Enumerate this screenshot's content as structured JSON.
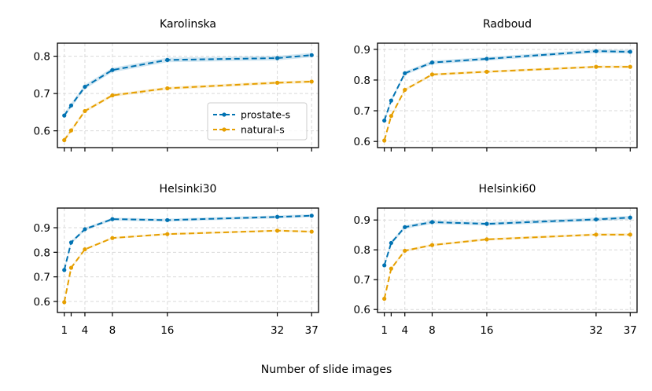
{
  "figure": {
    "xlabel": "Number of slide images",
    "legend": {
      "placement": "lower-right of Karolinska panel",
      "entries": [
        {
          "name": "prostate-s",
          "color": "#0072B2"
        },
        {
          "name": "natural-s",
          "color": "#E69F00"
        }
      ]
    }
  },
  "chart_data": [
    {
      "type": "line",
      "title": "Karolinska",
      "x": [
        1,
        2,
        4,
        8,
        16,
        32,
        37
      ],
      "xticks": [
        1,
        4,
        8,
        16,
        32,
        37
      ],
      "xlim": [
        0,
        38
      ],
      "ylim": [
        0.555,
        0.835
      ],
      "yticks": [
        0.6,
        0.7,
        0.8
      ],
      "ytick_labels": [
        "0.6",
        "0.7",
        "0.8"
      ],
      "grid": true,
      "series": [
        {
          "name": "prostate-s",
          "values": [
            0.641,
            0.668,
            0.718,
            0.763,
            0.79,
            0.795,
            0.803
          ],
          "band": 0.006
        },
        {
          "name": "natural-s",
          "values": [
            0.575,
            0.601,
            0.653,
            0.695,
            0.714,
            0.729,
            0.732
          ],
          "band": 0.004
        }
      ]
    },
    {
      "type": "line",
      "title": "Radboud",
      "x": [
        1,
        2,
        4,
        8,
        16,
        32,
        37
      ],
      "xticks": [
        1,
        4,
        8,
        16,
        32,
        37
      ],
      "xlim": [
        0,
        38
      ],
      "ylim": [
        0.58,
        0.92
      ],
      "yticks": [
        0.6,
        0.7,
        0.8,
        0.9
      ],
      "ytick_labels": [
        "0.6",
        "0.7",
        "0.8",
        "0.9"
      ],
      "grid": true,
      "series": [
        {
          "name": "prostate-s",
          "values": [
            0.668,
            0.733,
            0.822,
            0.857,
            0.869,
            0.894,
            0.892
          ],
          "band": 0.006
        },
        {
          "name": "natural-s",
          "values": [
            0.603,
            0.683,
            0.768,
            0.818,
            0.827,
            0.843,
            0.843
          ],
          "band": 0.004
        }
      ]
    },
    {
      "type": "line",
      "title": "Helsinki30",
      "x": [
        1,
        2,
        4,
        8,
        16,
        32,
        37
      ],
      "xticks": [
        1,
        4,
        8,
        16,
        32,
        37
      ],
      "xlim": [
        0,
        38
      ],
      "ylim": [
        0.555,
        0.98
      ],
      "yticks": [
        0.6,
        0.7,
        0.8,
        0.9
      ],
      "ytick_labels": [
        "0.6",
        "0.7",
        "0.8",
        "0.9"
      ],
      "grid": true,
      "series": [
        {
          "name": "prostate-s",
          "values": [
            0.728,
            0.84,
            0.894,
            0.935,
            0.931,
            0.944,
            0.949
          ],
          "band": 0.006
        },
        {
          "name": "natural-s",
          "values": [
            0.597,
            0.737,
            0.812,
            0.858,
            0.874,
            0.888,
            0.884
          ],
          "band": 0.004
        }
      ]
    },
    {
      "type": "line",
      "title": "Helsinki60",
      "x": [
        1,
        2,
        4,
        8,
        16,
        32,
        37
      ],
      "xticks": [
        1,
        4,
        8,
        16,
        32,
        37
      ],
      "xlim": [
        0,
        38
      ],
      "ylim": [
        0.59,
        0.94
      ],
      "yticks": [
        0.6,
        0.7,
        0.8,
        0.9
      ],
      "ytick_labels": [
        "0.6",
        "0.7",
        "0.8",
        "0.9"
      ],
      "grid": true,
      "series": [
        {
          "name": "prostate-s",
          "values": [
            0.748,
            0.823,
            0.876,
            0.893,
            0.887,
            0.902,
            0.908
          ],
          "band": 0.006
        },
        {
          "name": "natural-s",
          "values": [
            0.636,
            0.737,
            0.797,
            0.816,
            0.835,
            0.851,
            0.851
          ],
          "band": 0.004
        }
      ]
    }
  ]
}
